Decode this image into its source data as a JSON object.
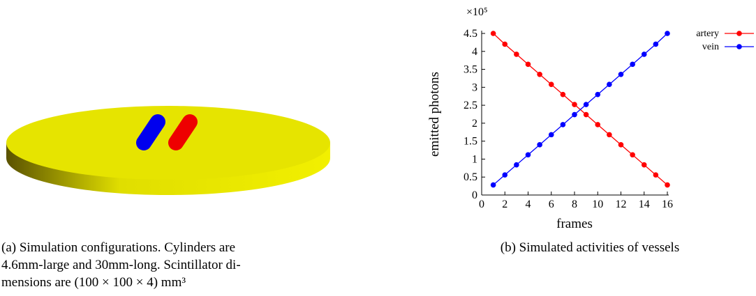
{
  "figures": [
    {
      "caption_lines": [
        "(a) Simulation configurations. Cylinders are",
        "4.6mm-large and 30mm-long. Scintillator di-",
        "mensions are (100 × 100 × 4) mm³"
      ]
    },
    {
      "caption_lines": [
        "(b) Simulated activities of vessels"
      ]
    }
  ],
  "chart_data": {
    "type": "line",
    "y_multiplier": "×10⁵",
    "x_label": "frames",
    "y_label": "emitted photons",
    "x": [
      1,
      2,
      3,
      4,
      5,
      6,
      7,
      8,
      9,
      10,
      11,
      12,
      13,
      14,
      15,
      16
    ],
    "series": [
      {
        "name": "artery",
        "color": "#ff0000",
        "values": [
          4.5,
          4.2,
          3.92,
          3.64,
          3.36,
          3.08,
          2.8,
          2.52,
          2.24,
          1.96,
          1.68,
          1.4,
          1.12,
          0.84,
          0.56,
          0.28
        ]
      },
      {
        "name": "vein",
        "color": "#0000ff",
        "values": [
          0.28,
          0.56,
          0.84,
          1.12,
          1.4,
          1.68,
          1.96,
          2.24,
          2.52,
          2.8,
          3.08,
          3.36,
          3.64,
          3.92,
          4.2,
          4.5
        ]
      }
    ],
    "xlim": [
      0,
      16
    ],
    "xticks": [
      0,
      2,
      4,
      6,
      8,
      10,
      12,
      14,
      16
    ],
    "ylim": [
      0,
      4.5
    ],
    "yticks": [
      0,
      0.5,
      1,
      1.5,
      2,
      2.5,
      3,
      3.5,
      4,
      4.5
    ],
    "legend": "top-right"
  }
}
